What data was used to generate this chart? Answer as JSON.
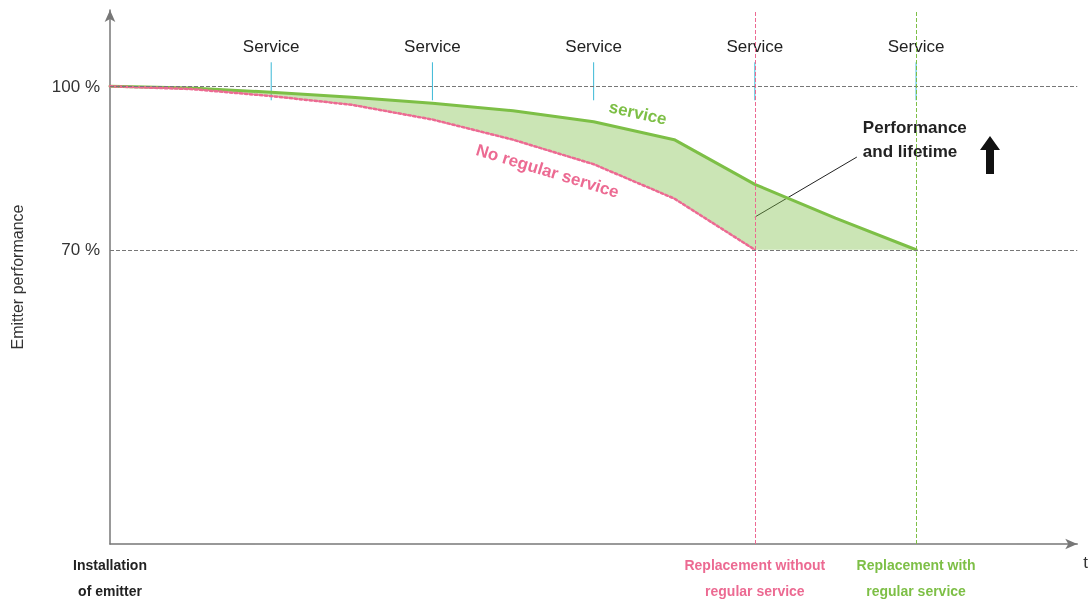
{
  "chart_data": {
    "type": "line",
    "xlabel": "t",
    "ylabel": "Emitter performance",
    "categories": [
      "Installation\nof emitter",
      null,
      null,
      null,
      null,
      null,
      null,
      null,
      "Replacement without\nregular service",
      null,
      "Replacement with\nregular service",
      null,
      null
    ],
    "ylim": [
      16,
      114
    ],
    "yticks": [
      {
        "value": 70,
        "label": "70 %"
      },
      {
        "value": 100,
        "label": "100 %"
      }
    ],
    "series": [
      {
        "name": "service",
        "color": "#7dbf46",
        "line_style": "solid",
        "values": [
          100,
          99.7,
          98.9,
          98,
          96.9,
          95.5,
          93.5,
          90.2,
          82,
          75.8,
          70,
          null,
          null
        ],
        "lower": [
          100,
          99.5,
          98.2,
          96.6,
          93.9,
          90.2,
          85.7,
          79.4,
          70,
          70,
          70,
          null,
          null
        ],
        "upper": [
          100,
          99.7,
          98.9,
          98,
          96.9,
          95.5,
          93.5,
          90.2,
          82,
          75.8,
          70,
          null,
          null
        ]
      },
      {
        "name": "No regular service",
        "color": "#ec6a92",
        "line_style": "dotted",
        "values": [
          100,
          99.5,
          98.2,
          96.6,
          93.9,
          90.2,
          85.7,
          79.4,
          70,
          null,
          null,
          null,
          null
        ]
      }
    ],
    "ref_lines": [
      {
        "axis": "y",
        "value": 100,
        "color": "#777777",
        "line_style": "dashed"
      },
      {
        "axis": "y",
        "value": 70,
        "color": "#777777",
        "line_style": "dashed"
      },
      {
        "axis": "x",
        "value": "Replacement without\nregular service",
        "color": "#ec6a92",
        "line_style": "dashed"
      },
      {
        "axis": "x",
        "value": "Replacement with\nregular service",
        "color": "#7dbf46",
        "line_style": "dashed"
      }
    ],
    "annotations": [
      {
        "text": "Service",
        "y": 100
      },
      {
        "text": "Service",
        "y": 100
      },
      {
        "text": "Service",
        "y": 100
      },
      {
        "text": "Service",
        "x": "Replacement without\nregular service",
        "y": 100
      },
      {
        "text": "Service",
        "x": "Replacement with\nregular service",
        "y": 100
      },
      {
        "text": "Performance\nand lifetime",
        "x": "Replacement without\nregular service",
        "y": 76
      }
    ],
    "legend": false,
    "grid": false,
    "marker": "none"
  }
}
